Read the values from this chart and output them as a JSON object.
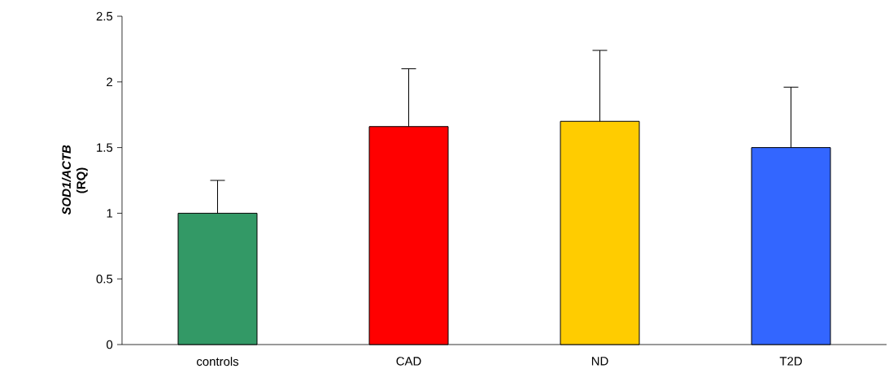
{
  "chart_data": {
    "type": "bar",
    "ylabel": "*SOD1/ACTB* (RQ)",
    "categories": [
      "controls",
      "CAD",
      "ND",
      "T2D"
    ],
    "values": [
      1.0,
      1.66,
      1.7,
      1.5
    ],
    "colors": [
      "#339966",
      "#ff0000",
      "#ffcc00",
      "#3366ff"
    ],
    "errors": [
      [
        1.0,
        1.25
      ],
      [
        1.66,
        2.1
      ],
      [
        1.7,
        2.24
      ],
      [
        1.5,
        1.96
      ]
    ],
    "ylim": [
      0,
      2.5
    ],
    "yticks": [
      0,
      0.5,
      1,
      1.5,
      2,
      2.5
    ],
    "grid": false
  }
}
